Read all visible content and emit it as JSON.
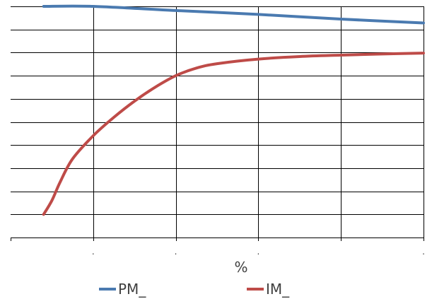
{
  "chart_data": {
    "type": "line",
    "title": "",
    "xlabel": "%",
    "ylabel": "",
    "xlim": [
      0,
      100
    ],
    "ylim": [
      0,
      100
    ],
    "x_ticks": [
      0,
      20,
      40,
      60,
      80,
      100
    ],
    "x_tick_labels": [
      "",
      ".",
      ".",
      ".",
      "",
      "."
    ],
    "y_ticks": [
      0,
      10,
      20,
      30,
      40,
      50,
      60,
      70,
      80,
      90,
      100
    ],
    "grid": true,
    "legend": "bottom",
    "series": [
      {
        "name": "PM_",
        "color": "#4a7ab0",
        "x": [
          8,
          20,
          40,
          60,
          80,
          100
        ],
        "y": [
          100,
          100,
          98.2,
          96.5,
          94.5,
          92.8
        ]
      },
      {
        "name": "IM_",
        "color": "#be4b48",
        "x": [
          8,
          10,
          12,
          15,
          20,
          25,
          30,
          35,
          40,
          45,
          50,
          60,
          70,
          80,
          90,
          100
        ],
        "y": [
          10,
          16,
          24,
          34,
          44,
          52,
          59,
          65,
          70,
          73.3,
          75.2,
          77.2,
          78.3,
          78.9,
          79.4,
          79.8
        ]
      }
    ]
  }
}
